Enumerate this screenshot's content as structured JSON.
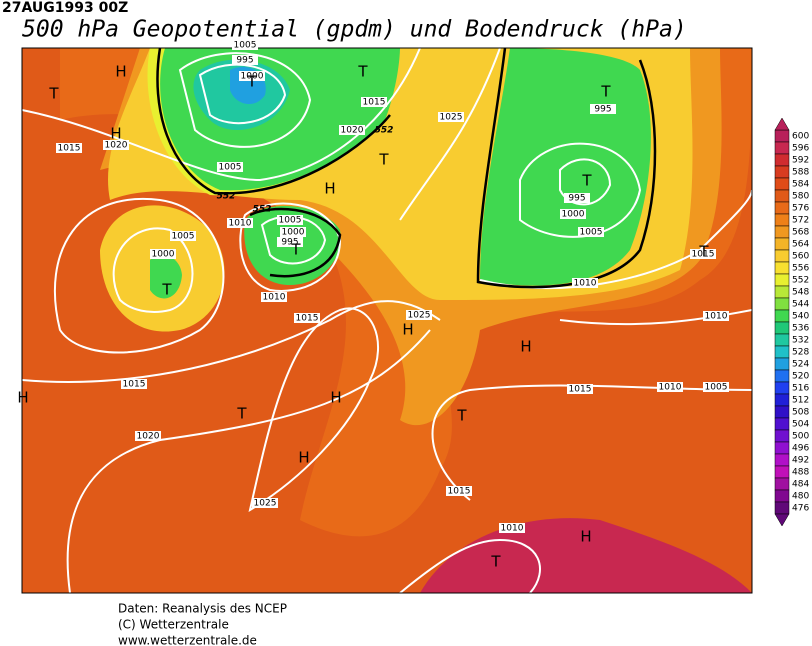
{
  "header": {
    "date": "27AUG1993 00Z",
    "title": "500 hPa Geopotential (gpdm) und Bodendruck (hPa)"
  },
  "isobar_labels": [
    "1005",
    "995",
    "1000",
    "1015",
    "1025",
    "1020",
    "1015",
    "1020",
    "1005",
    "1010",
    "1005",
    "1000",
    "995",
    "1005",
    "1000",
    "1010",
    "1015",
    "1025",
    "995",
    "995",
    "1000",
    "1005",
    "1010",
    "1015",
    "1010",
    "1015",
    "1010",
    "1005",
    "1015",
    "1020",
    "1025",
    "1015",
    "1010"
  ],
  "height_labels": [
    "552",
    "552",
    "552"
  ],
  "pressure_centers": [
    "H",
    "T",
    "H",
    "T",
    "T",
    "T",
    "H",
    "T",
    "T",
    "H",
    "H",
    "T",
    "T",
    "T",
    "H",
    "T",
    "H",
    "H",
    "T",
    "H",
    "T"
  ],
  "legend": {
    "labels": [
      "600",
      "596",
      "592",
      "588",
      "584",
      "580",
      "576",
      "572",
      "568",
      "564",
      "560",
      "556",
      "552",
      "548",
      "544",
      "540",
      "536",
      "532",
      "528",
      "524",
      "520",
      "516",
      "512",
      "508",
      "504",
      "500",
      "496",
      "492",
      "488",
      "484",
      "480",
      "476"
    ],
    "colors": [
      "#b8205a",
      "#c82850",
      "#d02c30",
      "#d83c20",
      "#e04c18",
      "#e05a18",
      "#e86a18",
      "#ee8018",
      "#f09820",
      "#f4b428",
      "#f8cc30",
      "#f8e030",
      "#e8f030",
      "#b8e838",
      "#80e040",
      "#40d850",
      "#20c878",
      "#20c8a0",
      "#20c0c8",
      "#20a0e0",
      "#2070f0",
      "#2040f0",
      "#2020d8",
      "#3010c8",
      "#5010d0",
      "#7010d0",
      "#9010d0",
      "#b010c8",
      "#c010b8",
      "#a010a0",
      "#800890",
      "#600878"
    ]
  },
  "footer": {
    "lines": [
      "Daten: Reanalysis des NCEP",
      "(C) Wetterzentrale",
      "www.wetterzentrale.de"
    ]
  }
}
